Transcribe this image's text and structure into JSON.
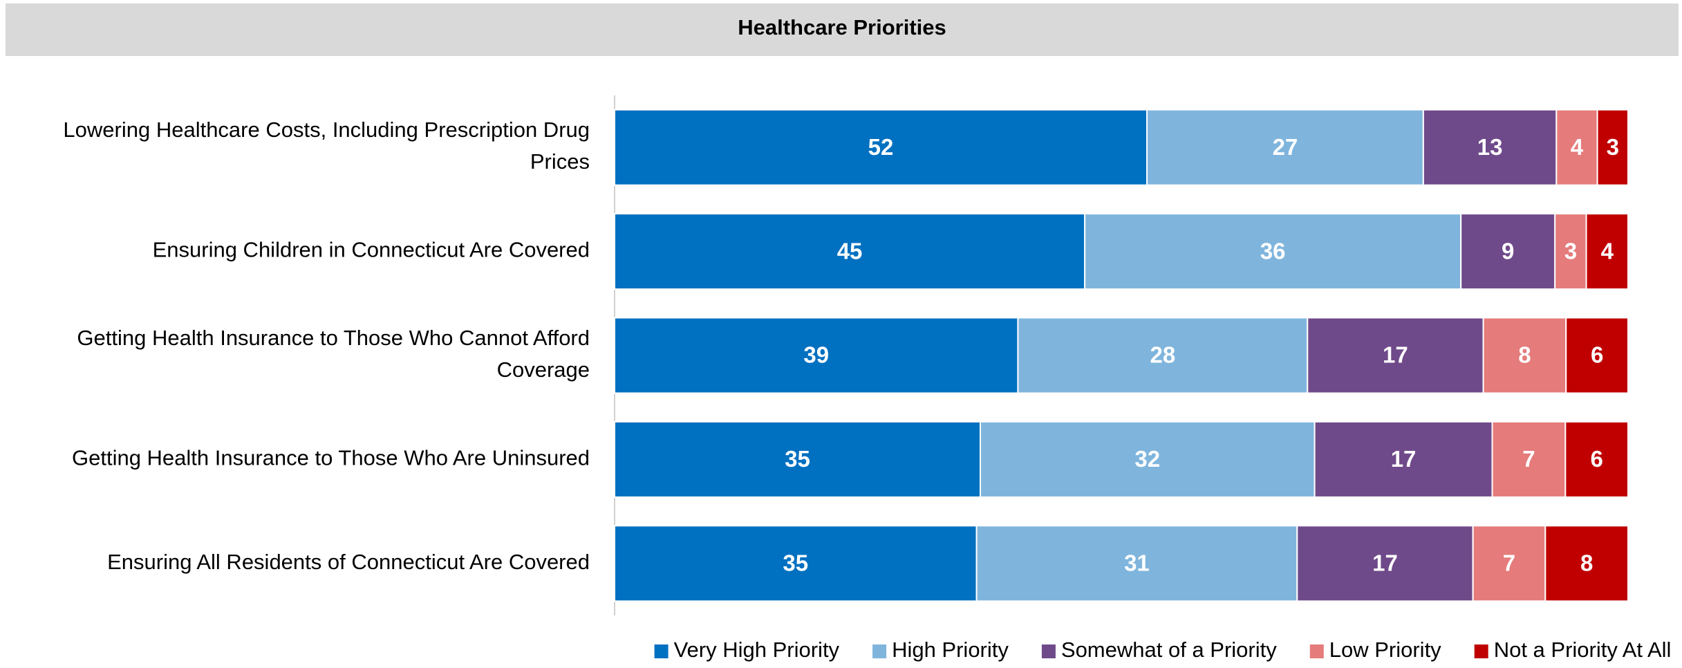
{
  "chart_data": {
    "type": "stacked_bar_100",
    "title": "Healthcare Priorities",
    "categories": [
      "Lowering Healthcare Costs, Including Prescription Drug Prices",
      "Ensuring Children in Connecticut Are Covered",
      "Getting Health Insurance to Those Who Cannot Afford Coverage",
      "Getting Health Insurance to Those Who Are Uninsured",
      "Ensuring All Residents of Connecticut Are Covered"
    ],
    "series": [
      {
        "name": "Very High Priority",
        "color": "#0070c0",
        "values": [
          52,
          45,
          39,
          35,
          35
        ]
      },
      {
        "name": "High Priority",
        "color": "#7fb5dd",
        "values": [
          27,
          36,
          28,
          32,
          31
        ]
      },
      {
        "name": "Somewhat of a Priority",
        "color": "#6f4a8a",
        "values": [
          13,
          9,
          17,
          17,
          17
        ]
      },
      {
        "name": "Low Priority",
        "color": "#e57b7b",
        "values": [
          4,
          3,
          8,
          7,
          7
        ]
      },
      {
        "name": "Not a Priority At All",
        "color": "#c00000",
        "values": [
          3,
          4,
          6,
          6,
          8
        ]
      }
    ],
    "legend": "bottom"
  }
}
